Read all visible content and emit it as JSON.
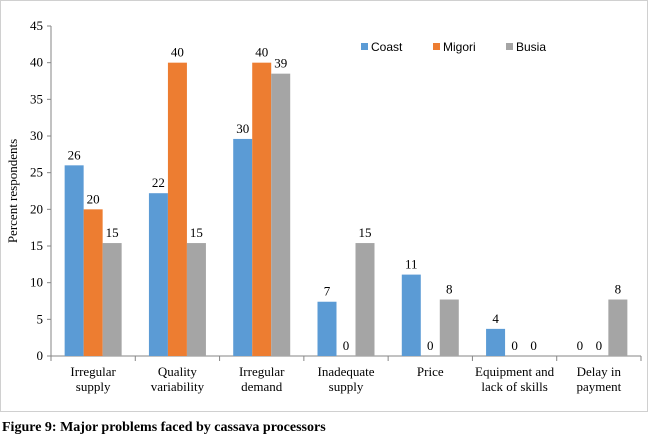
{
  "caption": "Figure 9: Major problems faced by cassava processors",
  "chart_data": {
    "type": "bar",
    "ylabel": "Percent respondents",
    "xlabel": "",
    "ylim": [
      0,
      45
    ],
    "yticks": [
      0,
      5,
      10,
      15,
      20,
      25,
      30,
      35,
      40,
      45
    ],
    "grid": false,
    "legend_position": "top-right",
    "categories": [
      [
        "Irregular",
        "supply"
      ],
      [
        "Quality",
        "variability"
      ],
      [
        "Irregular",
        "demand"
      ],
      [
        "Inadequate",
        "supply"
      ],
      [
        "Price"
      ],
      [
        "Equipment and",
        "lack of skills"
      ],
      [
        "Delay in",
        "payment"
      ]
    ],
    "series": [
      {
        "name": "Coast",
        "color": "#5B9BD5",
        "values": [
          26,
          22,
          30,
          7,
          11,
          4,
          0
        ],
        "plot_values": [
          26,
          22.2,
          29.6,
          7.4,
          11.1,
          3.7,
          0
        ]
      },
      {
        "name": "Migori",
        "color": "#ED7D31",
        "values": [
          20,
          40,
          40,
          0,
          0,
          0,
          0
        ],
        "plot_values": [
          20,
          40,
          40,
          0,
          0,
          0,
          0
        ]
      },
      {
        "name": "Busia",
        "color": "#A5A5A5",
        "values": [
          15,
          15,
          39,
          15,
          8,
          0,
          8
        ],
        "plot_values": [
          15.4,
          15.4,
          38.5,
          15.4,
          7.7,
          0,
          7.7
        ]
      }
    ]
  }
}
